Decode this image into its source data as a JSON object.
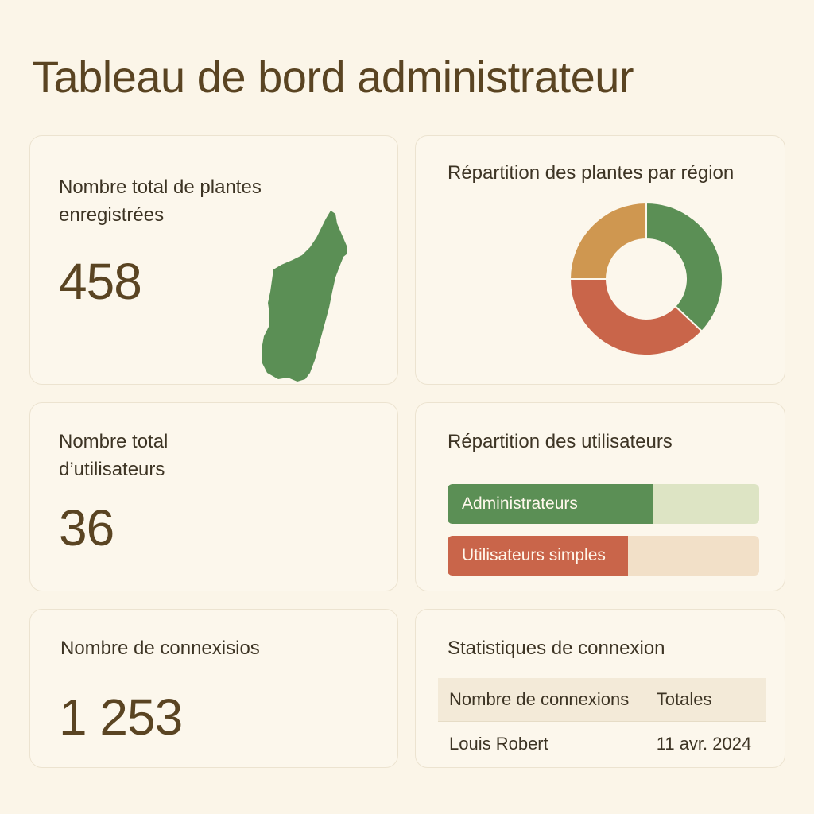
{
  "page": {
    "title": "Tableau de bord administrateur"
  },
  "plants": {
    "label": "Nombre total de plantes enregistrées",
    "value": "458",
    "map_icon": "madagascar-map-icon",
    "map_color": "#5b8f55"
  },
  "region_chart": {
    "title": "Répartition des plantes par région"
  },
  "users": {
    "label": "Nombre total d’utilisateurs",
    "value": "36"
  },
  "user_split": {
    "title": "Répartition des utilisateurs",
    "admins": {
      "label": "Administrateurs",
      "fraction": 0.66,
      "color": "#5b8f55",
      "track": "#dde4c4"
    },
    "simple": {
      "label": "Utilisateurs simples",
      "fraction": 0.58,
      "color": "#c9654a",
      "track": "#f2e0c8"
    }
  },
  "logins": {
    "label": "Nombre de connexisios",
    "value": "1 253"
  },
  "login_stats": {
    "title": "Statistiques de connexion",
    "headers": [
      "Nombre de connexions",
      "Totales"
    ],
    "rows": [
      [
        "Louis Robert",
        "11 avr. 2024"
      ]
    ]
  },
  "chart_data": {
    "type": "pie",
    "donut": true,
    "title": "Répartition des plantes par région",
    "slices": [
      {
        "value": 37,
        "color": "#5b8f55"
      },
      {
        "value": 38,
        "color": "#c9654a"
      },
      {
        "value": 25,
        "color": "#cf9750"
      }
    ]
  }
}
